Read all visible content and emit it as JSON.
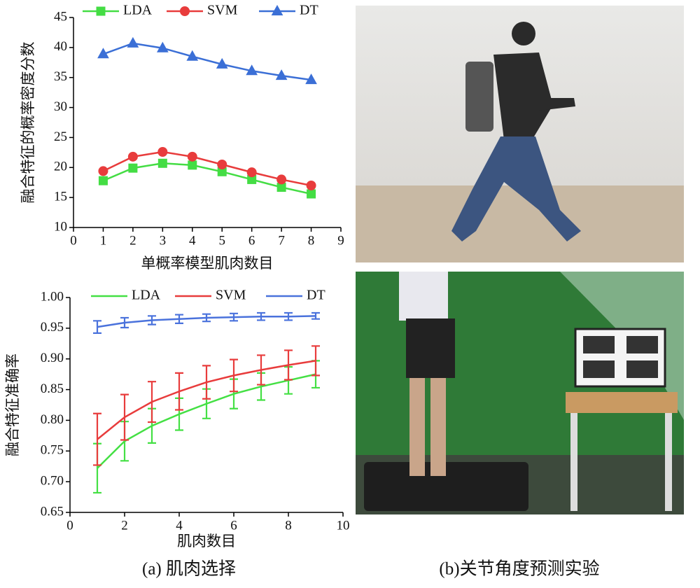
{
  "captions": [
    "(a) 肌肉选择",
    "(b)关节角度预测实验"
  ],
  "chart_data": [
    {
      "type": "line",
      "x_label": "单概率模型肌肉数目",
      "y_label": "融合特征的概率密度分数",
      "x": [
        1,
        2,
        3,
        4,
        5,
        6,
        7,
        8
      ],
      "xlim": [
        0,
        9
      ],
      "xticks": [
        0,
        1,
        2,
        3,
        4,
        5,
        6,
        7,
        8,
        9
      ],
      "ylim": [
        10,
        45
      ],
      "yticks": [
        10,
        15,
        20,
        25,
        30,
        35,
        40,
        45
      ],
      "legend": "top",
      "series": [
        {
          "name": "LDA",
          "color": "#44dd44",
          "marker": "square",
          "values": [
            17.8,
            19.9,
            20.7,
            20.4,
            19.3,
            18.0,
            16.7,
            15.6
          ]
        },
        {
          "name": "SVM",
          "color": "#e83c3c",
          "marker": "circle",
          "values": [
            19.4,
            21.8,
            22.6,
            21.8,
            20.5,
            19.2,
            18.0,
            17.0
          ]
        },
        {
          "name": "DT",
          "color": "#3b6fd6",
          "marker": "triangle",
          "values": [
            38.9,
            40.7,
            39.9,
            38.5,
            37.2,
            36.1,
            35.3,
            34.6
          ]
        }
      ]
    },
    {
      "type": "line",
      "x_label": "肌肉数目",
      "y_label": "融合特征准确率",
      "x": [
        1,
        2,
        3,
        4,
        5,
        6,
        7,
        8,
        9
      ],
      "xlim": [
        0,
        10
      ],
      "xticks": [
        0,
        2,
        4,
        6,
        8,
        10
      ],
      "ylim": [
        0.65,
        1.0
      ],
      "yticks": [
        0.65,
        {
          "value": 0.7,
          "label": "0.70"
        },
        0.75,
        {
          "value": 0.8,
          "label": "0.80"
        },
        0.85,
        {
          "value": 0.9,
          "label": "0.90"
        },
        0.95,
        {
          "value": 1.0,
          "label": "1.00"
        }
      ],
      "legend": "top",
      "series": [
        {
          "name": "LDA",
          "color": "#44e044",
          "values": [
            0.722,
            0.766,
            0.791,
            0.81,
            0.827,
            0.843,
            0.855,
            0.865,
            0.875
          ],
          "errors": [
            0.04,
            0.032,
            0.028,
            0.026,
            0.024,
            0.024,
            0.022,
            0.022,
            0.022
          ]
        },
        {
          "name": "SVM",
          "color": "#e83c3c",
          "values": [
            0.769,
            0.805,
            0.83,
            0.847,
            0.862,
            0.873,
            0.882,
            0.89,
            0.897
          ],
          "errors": [
            0.042,
            0.037,
            0.033,
            0.03,
            0.027,
            0.026,
            0.024,
            0.024,
            0.024
          ]
        },
        {
          "name": "DT",
          "color": "#4a72dc",
          "values": [
            0.952,
            0.959,
            0.963,
            0.965,
            0.967,
            0.968,
            0.969,
            0.969,
            0.97
          ],
          "errors": [
            0.01,
            0.008,
            0.007,
            0.007,
            0.006,
            0.006,
            0.006,
            0.006,
            0.005
          ]
        }
      ]
    }
  ]
}
